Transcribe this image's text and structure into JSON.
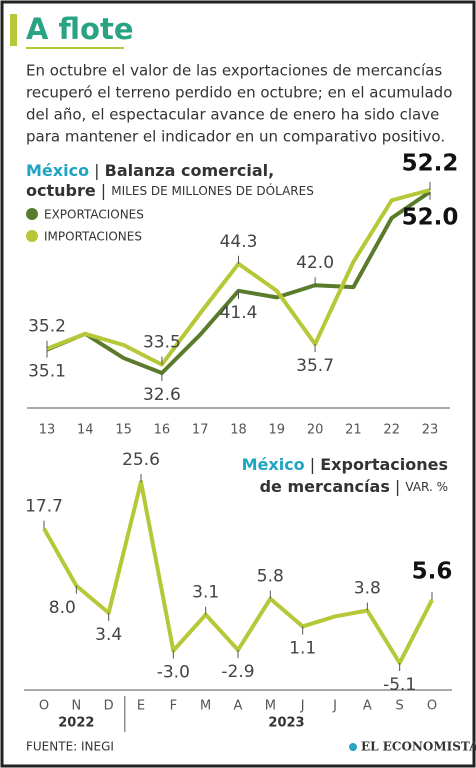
{
  "header": {
    "title": "A flote",
    "text_lines": [
      "En octubre el valor de las exportaciones de mercancías",
      "recuperó el terreno perdido en octubre; en el acumulado",
      "del año, el espectacular avance de enero ha sido clave",
      "para mantener el indicador en un comparativo positivo."
    ]
  },
  "chart_data": [
    {
      "type": "line",
      "title_region": "México",
      "title_lines": [
        "Balanza comercial,",
        "octubre"
      ],
      "unit": "MILES DE MILLONES DE DÓLARES",
      "categories": [
        "13",
        "14",
        "15",
        "16",
        "17",
        "18",
        "19",
        "20",
        "21",
        "22",
        "23"
      ],
      "series": [
        {
          "name": "EXPORTACIONES",
          "color": "#5b7b2c",
          "values": [
            35.1,
            36.8,
            34.2,
            32.6,
            36.7,
            41.4,
            40.7,
            42.0,
            41.8,
            49.2,
            52.0
          ],
          "value_labels": [
            "35.1",
            null,
            null,
            "32.6",
            null,
            "41.4",
            null,
            "42.0",
            null,
            null,
            "52.0"
          ]
        },
        {
          "name": "IMPORTACIONES",
          "color": "#b6c837",
          "values": [
            35.2,
            36.8,
            35.6,
            33.5,
            39.0,
            44.3,
            41.4,
            35.7,
            44.5,
            51.1,
            52.2
          ],
          "value_labels": [
            "35.2",
            null,
            null,
            "33.5",
            null,
            "44.3",
            null,
            "35.7",
            null,
            null,
            "52.2"
          ]
        }
      ],
      "legend": "top-left"
    },
    {
      "type": "line",
      "title_region": "México",
      "title_lines": [
        "Exportaciones",
        "de mercancías"
      ],
      "unit": "VAR. %",
      "categories": [
        "O",
        "N",
        "D",
        "E",
        "F",
        "M",
        "A",
        "M",
        "J",
        "J",
        "A",
        "S",
        "O"
      ],
      "years": [
        {
          "label": "2022",
          "months": 3
        },
        {
          "label": "2023",
          "months": 10
        }
      ],
      "series": [
        {
          "name": "Exportaciones de mercancías",
          "color": "#b6c837",
          "values": [
            17.7,
            8.0,
            3.4,
            25.6,
            -3.0,
            3.1,
            -2.9,
            5.8,
            1.1,
            2.8,
            3.8,
            -5.1,
            5.6
          ],
          "value_labels": [
            "17.7",
            "8.0",
            "3.4",
            "25.6",
            "-3.0",
            "3.1",
            "-2.9",
            "5.8",
            "1.1",
            null,
            "3.8",
            "-5.1",
            "5.6"
          ]
        }
      ]
    }
  ],
  "footer": {
    "source": "FUENTE: INEGI",
    "brand": "EL ECONOMISTA"
  }
}
